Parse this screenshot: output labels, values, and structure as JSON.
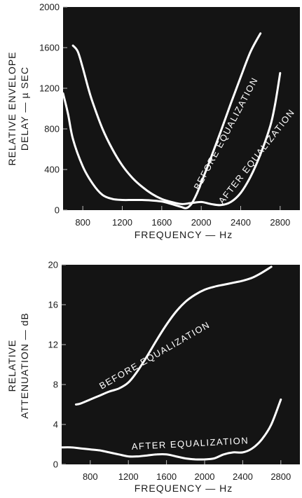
{
  "colors": {
    "plot_background": "#141414",
    "curve": "#ffffff",
    "text": "#1a1a1a"
  },
  "chart_data": [
    {
      "type": "line",
      "title": "",
      "xlabel": "FREQUENCY — Hz",
      "ylabel_lines": [
        "RELATIVE ENVELOPE",
        "DELAY — µ SEC"
      ],
      "xlim": [
        600,
        3000
      ],
      "ylim": [
        0,
        2000
      ],
      "xticks": [
        800,
        1200,
        1600,
        2000,
        2400,
        2800
      ],
      "xtick_labels": [
        "800",
        "1200",
        "1600",
        "2000",
        "2400",
        "2800"
      ],
      "yticks": [
        0,
        400,
        800,
        1200,
        1600,
        2000
      ],
      "ytick_labels": [
        "0",
        "400",
        "800",
        "1200",
        "1600",
        "2000"
      ],
      "grid": false,
      "series": [
        {
          "name": "BEFORE EQUALIZATION",
          "x": [
            600,
            650,
            700,
            800,
            900,
            1000,
            1100,
            1200,
            1300,
            1400,
            1500,
            1600,
            1700,
            1800,
            1850,
            1900,
            1950,
            2000,
            2100,
            2200,
            2300,
            2400,
            2500,
            2600
          ],
          "y": [
            1150,
            950,
            700,
            430,
            260,
            150,
            110,
            100,
            100,
            100,
            95,
            85,
            60,
            30,
            20,
            60,
            150,
            270,
            520,
            780,
            1050,
            1310,
            1560,
            1740
          ]
        },
        {
          "name": "AFTER EQUALIZATION",
          "x": [
            700,
            750,
            800,
            850,
            900,
            1000,
            1100,
            1200,
            1300,
            1400,
            1500,
            1600,
            1700,
            1800,
            1900,
            2000,
            2100,
            2200,
            2300,
            2400,
            2500,
            2600,
            2700,
            2750,
            2800
          ],
          "y": [
            1620,
            1560,
            1400,
            1220,
            1060,
            800,
            600,
            440,
            320,
            230,
            160,
            110,
            80,
            60,
            70,
            80,
            60,
            50,
            80,
            170,
            330,
            550,
            830,
            1050,
            1350
          ]
        }
      ],
      "annotations": [
        "BEFORE EQUALIZATION",
        "AFTER EQUALIZATION"
      ]
    },
    {
      "type": "line",
      "title": "",
      "xlabel": "FREQUENCY — Hz",
      "ylabel_lines": [
        "RELATIVE",
        "ATTENUATION — dB"
      ],
      "xlim": [
        500,
        3000
      ],
      "ylim": [
        0,
        20
      ],
      "xticks": [
        800,
        1200,
        1600,
        2000,
        2400,
        2800
      ],
      "xtick_labels": [
        "800",
        "1200",
        "1600",
        "2000",
        "2400",
        "2800"
      ],
      "yticks": [
        0,
        4,
        8,
        12,
        16,
        20
      ],
      "ytick_labels": [
        "0",
        "4",
        "8",
        "12",
        "16",
        "20"
      ],
      "grid": false,
      "series": [
        {
          "name": "BEFORE EQUALIZATION",
          "x": [
            650,
            700,
            800,
            900,
            1000,
            1100,
            1200,
            1300,
            1400,
            1500,
            1600,
            1700,
            1800,
            1900,
            2000,
            2100,
            2200,
            2300,
            2400,
            2500,
            2600,
            2700
          ],
          "y": [
            6,
            6.1,
            6.5,
            6.9,
            7.3,
            7.6,
            8.2,
            9.4,
            10.9,
            12.5,
            14,
            15.3,
            16.3,
            17,
            17.5,
            17.8,
            18,
            18.2,
            18.4,
            18.7,
            19.2,
            19.8
          ]
        },
        {
          "name": "AFTER EQUALIZATION",
          "x": [
            500,
            600,
            700,
            800,
            900,
            1000,
            1100,
            1200,
            1300,
            1400,
            1500,
            1600,
            1700,
            1800,
            1900,
            2000,
            2100,
            2200,
            2300,
            2400,
            2500,
            2600,
            2700,
            2800
          ],
          "y": [
            1.7,
            1.7,
            1.6,
            1.5,
            1.4,
            1.2,
            1.0,
            0.8,
            0.8,
            0.9,
            1.0,
            1.0,
            0.8,
            0.6,
            0.5,
            0.5,
            0.6,
            1.0,
            1.2,
            1.2,
            1.6,
            2.5,
            4.0,
            6.5
          ]
        }
      ],
      "annotations": [
        "BEFORE EQUALIZATION",
        "AFTER EQUALIZATION"
      ]
    }
  ]
}
